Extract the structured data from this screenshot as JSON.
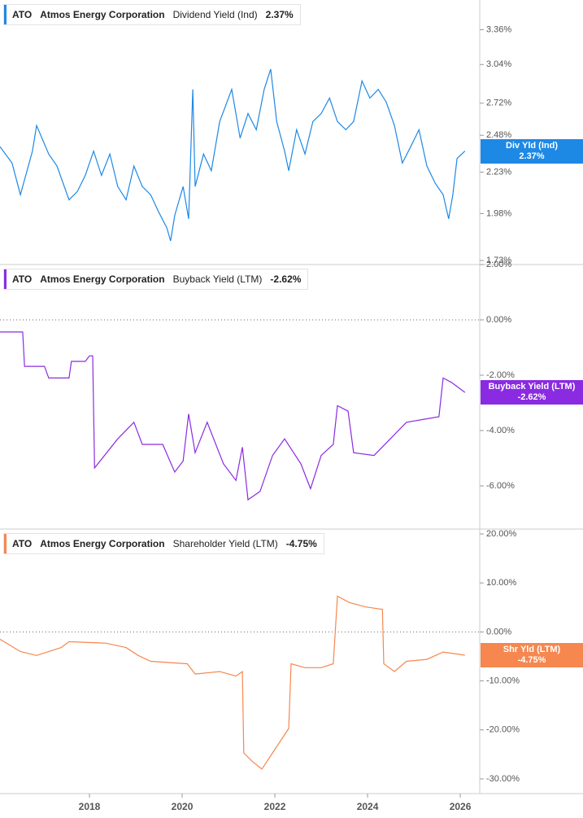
{
  "chart_data": [
    {
      "type": "line",
      "ticker": "ATO",
      "company": "Atmos Energy Corporation",
      "log_scale": true,
      "current": {
        "value": 2.37,
        "label": "2.37%"
      },
      "xlim": [
        2016.07,
        2026.42
      ],
      "ylim": [
        1.71,
        3.66
      ],
      "yticks": [
        {
          "value": 1.73,
          "label": "1.73%"
        },
        {
          "value": 1.98,
          "label": "1.98%"
        },
        {
          "value": 2.23,
          "label": "2.23%"
        },
        {
          "value": 2.48,
          "label": "2.48%"
        },
        {
          "value": 2.72,
          "label": "2.72%"
        },
        {
          "value": 3.04,
          "label": "3.04%"
        },
        {
          "value": 3.36,
          "label": "3.36%"
        }
      ],
      "x": [
        2016.07,
        2016.33,
        2016.51,
        2016.77,
        2016.86,
        2017.12,
        2017.3,
        2017.56,
        2017.74,
        2017.91,
        2018.09,
        2018.26,
        2018.44,
        2018.61,
        2018.79,
        2018.96,
        2019.14,
        2019.32,
        2019.49,
        2019.67,
        2019.75,
        2019.84,
        2020.02,
        2020.14,
        2020.23,
        2020.28,
        2020.46,
        2020.63,
        2020.81,
        2021.07,
        2021.25,
        2021.42,
        2021.6,
        2021.77,
        2021.91,
        2022.04,
        2022.21,
        2022.3,
        2022.47,
        2022.65,
        2022.82,
        2023.0,
        2023.18,
        2023.35,
        2023.53,
        2023.7,
        2023.88,
        2024.05,
        2024.23,
        2024.4,
        2024.58,
        2024.75,
        2024.93,
        2025.11,
        2025.28,
        2025.46,
        2025.63,
        2025.75,
        2025.84,
        2025.93,
        2026.1
      ],
      "series": [
        {
          "name": "Dividend Yield (Ind)",
          "short_name": "Div Yld (Ind)",
          "color": "#1e88e5",
          "values": [
            2.4,
            2.29,
            2.09,
            2.37,
            2.55,
            2.35,
            2.27,
            2.06,
            2.11,
            2.21,
            2.37,
            2.21,
            2.35,
            2.14,
            2.06,
            2.27,
            2.14,
            2.09,
            1.99,
            1.9,
            1.83,
            1.97,
            2.14,
            1.95,
            2.83,
            2.14,
            2.35,
            2.24,
            2.58,
            2.83,
            2.46,
            2.64,
            2.52,
            2.83,
            3.0,
            2.58,
            2.37,
            2.24,
            2.52,
            2.35,
            2.58,
            2.64,
            2.76,
            2.58,
            2.52,
            2.58,
            2.9,
            2.76,
            2.83,
            2.73,
            2.55,
            2.29,
            2.4,
            2.52,
            2.27,
            2.16,
            2.09,
            1.95,
            2.09,
            2.32,
            2.37
          ]
        }
      ]
    },
    {
      "type": "line",
      "ticker": "ATO",
      "company": "Atmos Energy Corporation",
      "zero_line": true,
      "current": {
        "value": -2.62,
        "label": "-2.62%"
      },
      "xlim": [
        2016.07,
        2026.42
      ],
      "ylim": [
        -7.56,
        2.0
      ],
      "yticks": [
        {
          "value": -6,
          "label": "-6.00%"
        },
        {
          "value": -4,
          "label": "-4.00%"
        },
        {
          "value": -2,
          "label": "-2.00%"
        },
        {
          "value": 0,
          "label": "0.00%"
        },
        {
          "value": 2,
          "label": "2.00%"
        }
      ],
      "x": [
        2016.07,
        2016.56,
        2016.6,
        2017.03,
        2017.12,
        2017.56,
        2017.61,
        2017.91,
        2018.0,
        2018.07,
        2018.11,
        2018.61,
        2018.96,
        2019.14,
        2019.58,
        2019.84,
        2020.02,
        2020.14,
        2020.28,
        2020.54,
        2020.89,
        2021.16,
        2021.3,
        2021.42,
        2021.68,
        2021.95,
        2022.21,
        2022.56,
        2022.77,
        2023.0,
        2023.26,
        2023.35,
        2023.58,
        2023.7,
        2024.14,
        2024.49,
        2024.84,
        2025.19,
        2025.54,
        2025.63,
        2025.81,
        2026.1
      ],
      "series": [
        {
          "name": "Buyback Yield (LTM)",
          "short_name": "Buyback Yield (LTM)",
          "color": "#8a2be2",
          "values": [
            -0.44,
            -0.44,
            -1.68,
            -1.68,
            -2.1,
            -2.1,
            -1.5,
            -1.5,
            -1.3,
            -1.3,
            -5.35,
            -4.3,
            -3.7,
            -4.5,
            -4.5,
            -5.5,
            -5.1,
            -3.4,
            -4.8,
            -3.7,
            -5.2,
            -5.8,
            -4.6,
            -6.5,
            -6.2,
            -4.9,
            -4.3,
            -5.2,
            -6.1,
            -4.9,
            -4.5,
            -3.1,
            -3.3,
            -4.8,
            -4.9,
            -4.3,
            -3.7,
            -3.6,
            -3.5,
            -2.1,
            -2.26,
            -2.62
          ]
        }
      ]
    },
    {
      "type": "line",
      "ticker": "ATO",
      "company": "Atmos Energy Corporation",
      "zero_line": true,
      "current": {
        "value": -4.75,
        "label": "-4.75%"
      },
      "xlim": [
        2016.07,
        2026.42
      ],
      "xticks": [
        2018,
        2020,
        2022,
        2024,
        2026
      ],
      "ylim": [
        -33,
        21
      ],
      "yticks": [
        {
          "value": -30,
          "label": "-30.00%"
        },
        {
          "value": -20,
          "label": "-20.00%"
        },
        {
          "value": -10,
          "label": "-10.00%"
        },
        {
          "value": 0,
          "label": "0.00%"
        },
        {
          "value": 10,
          "label": "10.00%"
        },
        {
          "value": 20,
          "label": "20.00%"
        }
      ],
      "x": [
        2016.07,
        2016.51,
        2016.86,
        2017.39,
        2017.56,
        2018.35,
        2018.79,
        2019.05,
        2019.32,
        2020.11,
        2020.28,
        2020.81,
        2021.16,
        2021.3,
        2021.33,
        2021.51,
        2021.72,
        2021.95,
        2022.3,
        2022.35,
        2022.65,
        2023.0,
        2023.26,
        2023.35,
        2023.61,
        2023.96,
        2024.32,
        2024.35,
        2024.58,
        2024.84,
        2025.28,
        2025.63,
        2026.1
      ],
      "series": [
        {
          "name": "Shareholder Yield (LTM)",
          "short_name": "Shr Yld (LTM)",
          "color": "#f5874f",
          "values": [
            -1.5,
            -4.0,
            -4.8,
            -3.2,
            -2.0,
            -2.3,
            -3.2,
            -4.8,
            -6.0,
            -6.5,
            -8.6,
            -8.1,
            -9.0,
            -8.1,
            -24.7,
            -26.4,
            -28.0,
            -24.7,
            -19.7,
            -6.5,
            -7.3,
            -7.3,
            -6.5,
            7.3,
            6.0,
            5.1,
            4.6,
            -6.5,
            -8.1,
            -6.0,
            -5.6,
            -4.1,
            -4.75
          ]
        }
      ]
    }
  ]
}
